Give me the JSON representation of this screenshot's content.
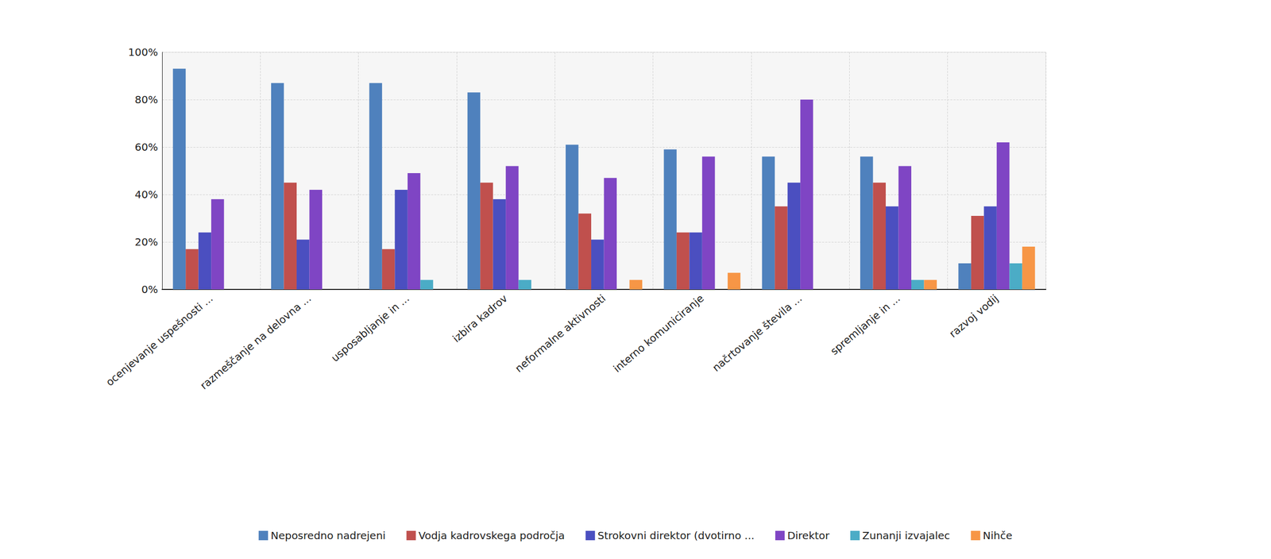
{
  "chart_data": {
    "type": "bar",
    "categories": [
      "ocenjevanje uspešnosti ...",
      "razmeščanje na delovna ...",
      "usposabljanje in ...",
      "izbira kadrov",
      "neformalne aktivnosti",
      "interno komuniciranje",
      "načrtovanje števila ...",
      "spremljanje in ...",
      "razvoj vodij"
    ],
    "series": [
      {
        "name": "Neposredno nadrejeni",
        "color": "#4f81bd",
        "values": [
          93,
          87,
          87,
          83,
          61,
          59,
          56,
          56,
          11
        ]
      },
      {
        "name": "Vodja kadrovskega področja",
        "color": "#c0504d",
        "values": [
          17,
          45,
          17,
          45,
          32,
          24,
          35,
          45,
          31
        ]
      },
      {
        "name": "Strokovni direktor (dvotirno ...",
        "color": "#4b4fc0",
        "values": [
          24,
          21,
          42,
          38,
          21,
          24,
          45,
          35,
          35
        ]
      },
      {
        "name": "Direktor",
        "color": "#7f45c4",
        "values": [
          38,
          42,
          49,
          52,
          47,
          56,
          80,
          52,
          62
        ]
      },
      {
        "name": "Zunanji izvajalec",
        "color": "#4bacc6",
        "values": [
          0,
          0,
          4,
          4,
          0,
          0,
          0,
          4,
          11
        ]
      },
      {
        "name": "Nihče",
        "color": "#f79646",
        "values": [
          0,
          0,
          0,
          0,
          4,
          7,
          0,
          4,
          18
        ]
      }
    ],
    "ylim": [
      0,
      100
    ],
    "yticks": [
      {
        "value": 0,
        "label": "0%"
      },
      {
        "value": 20,
        "label": "20%"
      },
      {
        "value": 40,
        "label": "40%"
      },
      {
        "value": 60,
        "label": "60%"
      },
      {
        "value": 80,
        "label": "80%"
      },
      {
        "value": 100,
        "label": "100%"
      }
    ],
    "grid": true,
    "legend": "bottom"
  }
}
